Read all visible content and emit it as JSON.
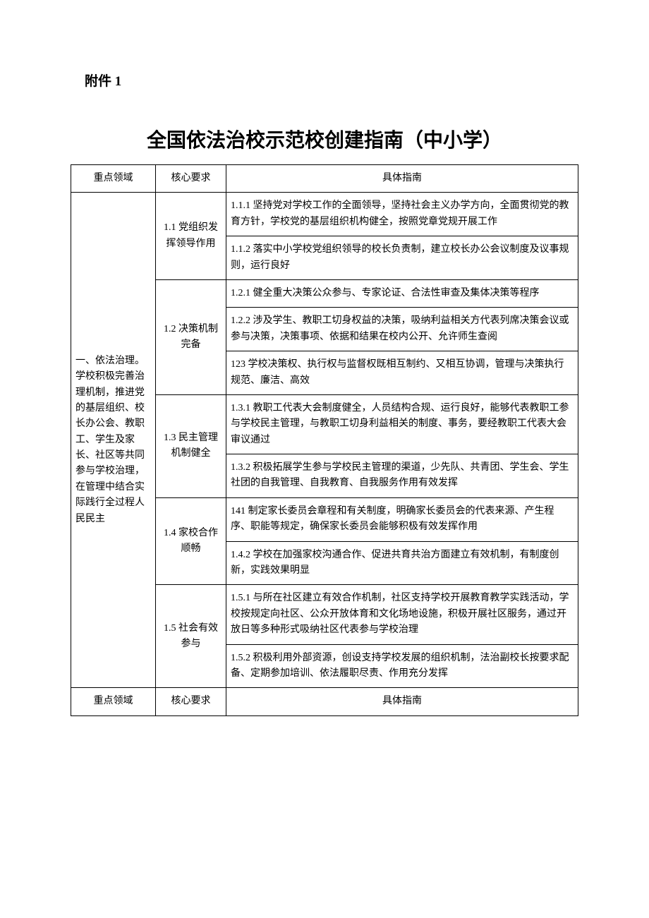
{
  "attachment_label": "附件 1",
  "main_title": "全国依法治校示范校创建指南（中小学）",
  "headers": {
    "domain": "重点领域",
    "core": "核心要求",
    "guide": "具体指南"
  },
  "domain_1": "一、依法治理。学校积极完善治理机制，推进党的基层组织、校长办公会、教职工、学生及家长、社区等共同参与学校治理，在管理中结合实际践行全过程人民民主",
  "core_1_1": "1.1 党组织发挥领导作用",
  "g_1_1_1": "1.1.1 坚持党对学校工作的全面领导，坚持社会主义办学方向，全面贯彻党的教育方针，学校党的基层组织机构健全，按照党章党规开展工作",
  "g_1_1_2": "1.1.2 落实中小学校党组织领导的校长负责制，建立校长办公会议制度及议事规则，运行良好",
  "core_1_2": "1.2 决策机制完备",
  "g_1_2_1": "1.2.1 健全重大决策公众参与、专家论证、合法性审查及集体决策等程序",
  "g_1_2_2": "1.2.2 涉及学生、教职工切身权益的决策，吸纳利益相关方代表列席决策会议或参与决策，决策事项、依据和结果在校内公开、允许师生查阅",
  "g_1_2_3": "123 学校决策权、执行权与监督权既相互制约、又相互协调，管理与决策执行规范、廉洁、高效",
  "core_1_3": "1.3 民主管理机制健全",
  "g_1_3_1": "1.3.1 教职工代表大会制度健全，人员结构合规、运行良好，能够代表教职工参与学校民主管理，与教职工切身利益相关的制度、事务，要经教职工代表大会审议通过",
  "g_1_3_2": "1.3.2 积极拓展学生参与学校民主管理的渠道，少先队、共青团、学生会、学生社团的自我管理、自我教育、自我服务作用有效发挥",
  "core_1_4": "1.4 家校合作顺畅",
  "g_1_4_1": "141 制定家长委员会章程和有关制度，明确家长委员会的代表来源、产生程序、职能等规定，确保家长委员会能够积极有效发挥作用",
  "g_1_4_2": "1.4.2 学校在加强家校沟通合作、促进共育共治方面建立有效机制，有制度创新，实践效果明显",
  "core_1_5": "1.5 社会有效参与",
  "g_1_5_1": "1.5.1 与所在社区建立有效合作机制，社区支持学校开展教育教学实践活动，学校按规定向社区、公众开放体育和文化场地设施，积极开展社区服务，通过开放日等多种形式吸纳社区代表参与学校治理",
  "g_1_5_2": "1.5.2 积极利用外部资源，创设支持学校发展的组织机制，法治副校长按要求配备、定期参加培训、依法履职尽责、作用充分发挥"
}
